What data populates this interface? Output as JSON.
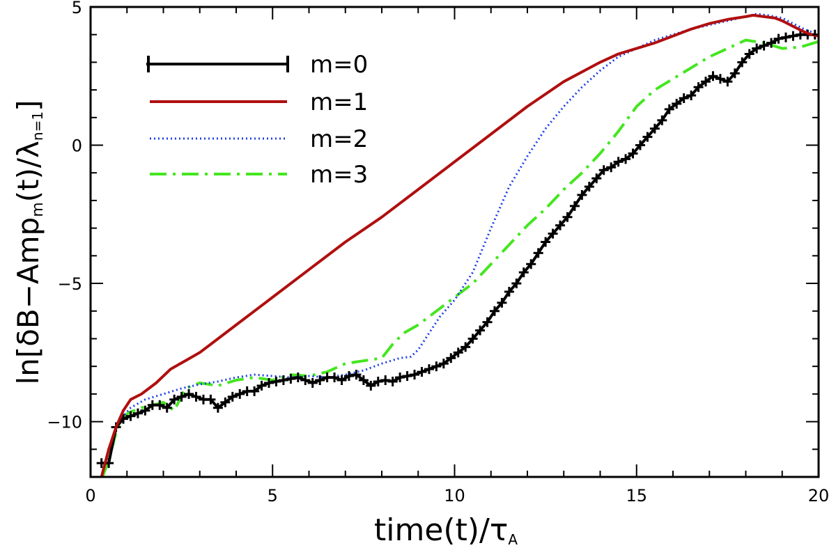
{
  "chart_data": {
    "type": "line",
    "xlabel": "time(t)/τ",
    "xlabel_sub": "A",
    "ylabel_prefix": "ln[δB−Amp",
    "ylabel_sub1": "m",
    "ylabel_mid": "(t)/λ",
    "ylabel_sub2": "n=1",
    "ylabel_suffix": "]",
    "xlim": [
      0,
      20
    ],
    "ylim": [
      -12,
      5
    ],
    "xticks": [
      0,
      5,
      10,
      15,
      20
    ],
    "yticks": [
      -10,
      -5,
      0,
      5
    ],
    "xtick_labels": [
      "0",
      "5",
      "10",
      "15",
      "20"
    ],
    "ytick_labels": [
      "−10",
      "−5",
      "0",
      "5"
    ],
    "grid": false,
    "legend_position": "top-left",
    "series": [
      {
        "name": "m=0",
        "color": "#000000",
        "style": "solid-plus",
        "x": [
          0.3,
          0.5,
          0.7,
          0.9,
          1.1,
          1.3,
          1.5,
          1.7,
          1.9,
          2.1,
          2.3,
          2.5,
          2.7,
          2.9,
          3.1,
          3.3,
          3.5,
          3.7,
          3.9,
          4.1,
          4.3,
          4.5,
          4.7,
          4.9,
          5.1,
          5.3,
          5.5,
          5.7,
          5.9,
          6.1,
          6.3,
          6.5,
          6.7,
          6.9,
          7.1,
          7.3,
          7.5,
          7.7,
          7.9,
          8.1,
          8.3,
          8.5,
          8.7,
          8.9,
          9.1,
          9.3,
          9.5,
          9.7,
          9.9,
          10.1,
          10.3,
          10.5,
          10.7,
          10.9,
          11.1,
          11.3,
          11.5,
          11.7,
          11.9,
          12.1,
          12.3,
          12.5,
          12.7,
          12.9,
          13.1,
          13.3,
          13.5,
          13.7,
          13.9,
          14.1,
          14.3,
          14.5,
          14.7,
          14.9,
          15.1,
          15.3,
          15.5,
          15.7,
          15.9,
          16.1,
          16.3,
          16.5,
          16.7,
          16.9,
          17.1,
          17.3,
          17.5,
          17.7,
          17.9,
          18.1,
          18.3,
          18.5,
          18.7,
          18.9,
          19.1,
          19.3,
          19.5,
          19.7,
          19.9
        ],
        "values": [
          -11.5,
          -11.5,
          -10.2,
          -9.9,
          -9.8,
          -9.7,
          -9.6,
          -9.4,
          -9.4,
          -9.5,
          -9.2,
          -9.1,
          -9.0,
          -9.1,
          -9.2,
          -9.2,
          -9.5,
          -9.3,
          -9.1,
          -9.0,
          -8.9,
          -8.9,
          -8.7,
          -8.6,
          -8.55,
          -8.5,
          -8.45,
          -8.4,
          -8.5,
          -8.6,
          -8.5,
          -8.4,
          -8.4,
          -8.5,
          -8.35,
          -8.3,
          -8.5,
          -8.7,
          -8.55,
          -8.5,
          -8.55,
          -8.4,
          -8.35,
          -8.3,
          -8.2,
          -8.1,
          -8.0,
          -7.9,
          -7.7,
          -7.5,
          -7.3,
          -7.0,
          -6.7,
          -6.4,
          -6.0,
          -5.7,
          -5.3,
          -5.0,
          -4.6,
          -4.3,
          -3.9,
          -3.5,
          -3.2,
          -2.9,
          -2.6,
          -2.2,
          -1.8,
          -1.5,
          -1.2,
          -0.9,
          -0.8,
          -0.6,
          -0.5,
          -0.3,
          0.0,
          0.3,
          0.6,
          0.9,
          1.3,
          1.5,
          1.7,
          1.8,
          2.1,
          2.3,
          2.5,
          2.4,
          2.3,
          2.6,
          3.0,
          3.3,
          3.5,
          3.6,
          3.7,
          3.85,
          3.9,
          3.95,
          4.0,
          4.0,
          4.0
        ]
      },
      {
        "name": "m=1",
        "color": "#b00f0f",
        "style": "solid",
        "x": [
          0.3,
          0.5,
          0.7,
          0.9,
          1.1,
          1.4,
          1.8,
          2.2,
          2.6,
          3.0,
          3.5,
          4.0,
          4.5,
          5.0,
          6.0,
          7.0,
          8.0,
          9.0,
          10.0,
          11.0,
          12.0,
          13.0,
          14.0,
          14.5,
          15.0,
          15.5,
          16.0,
          16.5,
          17.0,
          17.5,
          18.0,
          18.2,
          18.5,
          18.8,
          19.0,
          19.3,
          19.6,
          19.8,
          20.0
        ],
        "values": [
          -12.0,
          -11.0,
          -10.2,
          -9.6,
          -9.2,
          -9.0,
          -8.6,
          -8.1,
          -7.8,
          -7.5,
          -7.0,
          -6.5,
          -6.0,
          -5.5,
          -4.5,
          -3.5,
          -2.6,
          -1.6,
          -0.6,
          0.4,
          1.4,
          2.3,
          3.0,
          3.3,
          3.5,
          3.7,
          3.95,
          4.2,
          4.4,
          4.55,
          4.65,
          4.7,
          4.65,
          4.6,
          4.5,
          4.3,
          4.1,
          4.0,
          3.95
        ]
      },
      {
        "name": "m=2",
        "color": "#1a3fe6",
        "style": "dotted",
        "x": [
          0.3,
          0.5,
          0.7,
          0.9,
          1.1,
          1.5,
          2.0,
          2.5,
          3.0,
          3.5,
          4.0,
          4.5,
          5.0,
          5.5,
          6.0,
          6.5,
          7.0,
          7.5,
          8.0,
          8.5,
          8.8,
          9.0,
          9.3,
          9.6,
          10.0,
          10.5,
          11.0,
          11.5,
          12.0,
          12.5,
          13.0,
          13.5,
          14.0,
          14.5,
          15.0,
          15.5,
          16.0,
          16.5,
          17.0,
          17.5,
          18.0,
          18.3,
          18.6,
          19.0,
          19.3,
          19.6,
          20.0
        ],
        "values": [
          -12.0,
          -11.0,
          -10.2,
          -9.8,
          -9.5,
          -9.2,
          -9.0,
          -8.8,
          -8.65,
          -8.55,
          -8.4,
          -8.3,
          -8.35,
          -8.4,
          -8.35,
          -8.4,
          -8.3,
          -8.15,
          -7.9,
          -7.7,
          -7.65,
          -7.4,
          -6.8,
          -6.2,
          -5.6,
          -4.6,
          -3.0,
          -1.5,
          -0.4,
          0.6,
          1.4,
          2.1,
          2.7,
          3.2,
          3.5,
          3.8,
          4.0,
          4.2,
          4.35,
          4.5,
          4.65,
          4.75,
          4.7,
          4.6,
          4.4,
          4.2,
          4.0
        ]
      },
      {
        "name": "m=3",
        "color": "#44e61f",
        "style": "dashed",
        "x": [
          0.3,
          0.5,
          0.7,
          0.9,
          1.1,
          1.4,
          1.7,
          2.0,
          2.3,
          2.6,
          3.0,
          3.5,
          4.0,
          4.5,
          5.0,
          5.5,
          6.0,
          6.5,
          7.0,
          7.5,
          8.0,
          8.3,
          8.6,
          9.0,
          9.5,
          10.0,
          10.5,
          11.0,
          11.5,
          12.0,
          12.5,
          13.0,
          13.5,
          14.0,
          14.5,
          15.0,
          15.5,
          16.0,
          16.5,
          17.0,
          17.5,
          18.0,
          18.5,
          19.0,
          19.5,
          20.0
        ],
        "values": [
          -12.1,
          -11.4,
          -10.4,
          -9.8,
          -9.65,
          -9.5,
          -9.4,
          -9.3,
          -9.6,
          -8.8,
          -8.6,
          -8.7,
          -8.5,
          -8.4,
          -8.5,
          -8.3,
          -8.35,
          -8.2,
          -7.9,
          -7.8,
          -7.7,
          -7.2,
          -6.8,
          -6.5,
          -6.0,
          -5.5,
          -5.0,
          -4.3,
          -3.6,
          -2.9,
          -2.3,
          -1.6,
          -1.0,
          -0.3,
          0.5,
          1.4,
          2.0,
          2.4,
          2.8,
          3.2,
          3.5,
          3.8,
          3.7,
          3.5,
          3.55,
          3.75
        ]
      }
    ]
  }
}
